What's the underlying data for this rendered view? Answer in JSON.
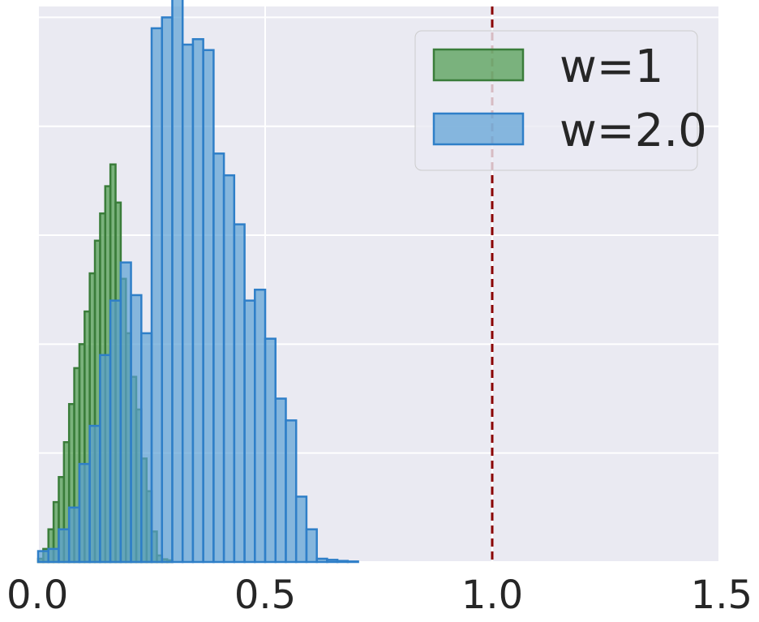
{
  "chart_data": {
    "type": "bar",
    "grid": true,
    "legend_position": "top-right",
    "xlim": [
      0.0,
      1.5
    ],
    "ylim": [
      0,
      51
    ],
    "xticks": [
      "0.0",
      "0.5",
      "1.0",
      "1.5"
    ],
    "vline": {
      "x": 1.0,
      "color": "#8b0000",
      "style": "dashed"
    },
    "series": [
      {
        "name": "w=1",
        "fill": "#4a9a4a",
        "stroke": "#3a7d3a",
        "bin_width": 0.01137,
        "x": [
          0.0,
          0.0114,
          0.0227,
          0.0341,
          0.0455,
          0.0569,
          0.0682,
          0.0796,
          0.091,
          0.1024,
          0.1137,
          0.1251,
          0.1365,
          0.1478,
          0.1592,
          0.1706,
          0.182,
          0.1933,
          0.2047,
          0.2161,
          0.2275,
          0.2389,
          0.2502,
          0.2616,
          0.273,
          0.2843
        ],
        "values": [
          0.3,
          1.2,
          3.0,
          5.5,
          7.8,
          11.0,
          14.5,
          17.8,
          20.0,
          23.0,
          26.5,
          29.5,
          32.0,
          34.5,
          36.5,
          33.0,
          26.0,
          21.0,
          17.0,
          14.0,
          9.5,
          6.5,
          2.8,
          0.6,
          0.25,
          0.15
        ]
      },
      {
        "name": "w=2.0",
        "fill": "#5a9fd4",
        "stroke": "#2f7fc8",
        "bin_width": 0.02273,
        "x": [
          0.0,
          0.0227,
          0.0455,
          0.0682,
          0.0909,
          0.1137,
          0.1364,
          0.1591,
          0.1818,
          0.2046,
          0.2273,
          0.25,
          0.2728,
          0.2955,
          0.3182,
          0.3409,
          0.3637,
          0.3864,
          0.4091,
          0.4319,
          0.4546,
          0.4773,
          0.5,
          0.5228,
          0.5455,
          0.5682,
          0.591,
          0.6137,
          0.6364,
          0.6591,
          0.6819
        ],
        "values": [
          1.0,
          1.2,
          3.0,
          5.0,
          9.0,
          12.5,
          19.0,
          24.0,
          27.5,
          24.5,
          21.0,
          49.0,
          50.0,
          52.0,
          47.5,
          48.0,
          47.0,
          37.5,
          35.5,
          31.0,
          24.0,
          25.0,
          20.5,
          15.0,
          13.0,
          6.0,
          3.0,
          0.3,
          0.2,
          0.1,
          0.05
        ]
      }
    ]
  }
}
